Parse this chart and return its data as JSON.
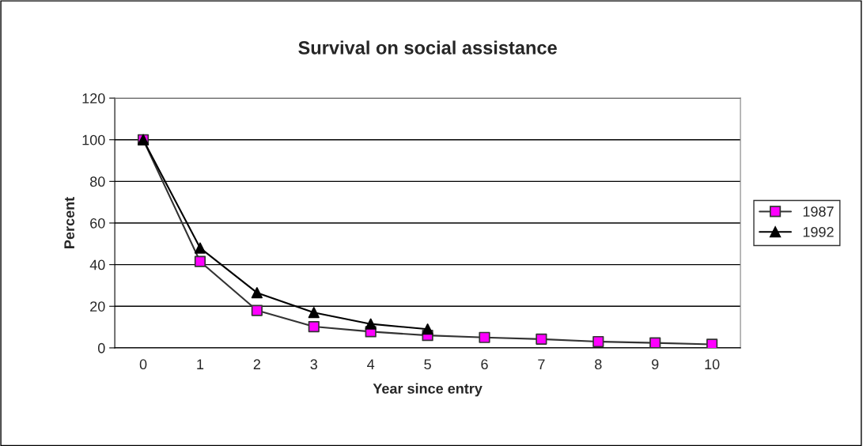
{
  "chart_data": {
    "type": "line",
    "title": "Survival on social assistance",
    "xlabel": "Year since entry",
    "ylabel": "Percent",
    "categories": [
      "0",
      "1",
      "2",
      "3",
      "4",
      "5",
      "6",
      "7",
      "8",
      "9",
      "10"
    ],
    "series": [
      {
        "name": "1987",
        "color": "#ff00ff",
        "marker": "square",
        "values": [
          100,
          41.5,
          18,
          10.2,
          7.8,
          6,
          5,
          4.2,
          3,
          2.4,
          1.7
        ]
      },
      {
        "name": "1992",
        "color": "#000000",
        "marker": "triangle",
        "values": [
          100,
          48,
          26.5,
          17,
          11.5,
          9,
          null,
          null,
          null,
          null,
          null
        ]
      }
    ],
    "ylim": [
      0,
      120
    ],
    "yticks": [
      0,
      20,
      40,
      60,
      80,
      100,
      120
    ],
    "grid": "y",
    "legend": "right",
    "line_style": "solid"
  }
}
